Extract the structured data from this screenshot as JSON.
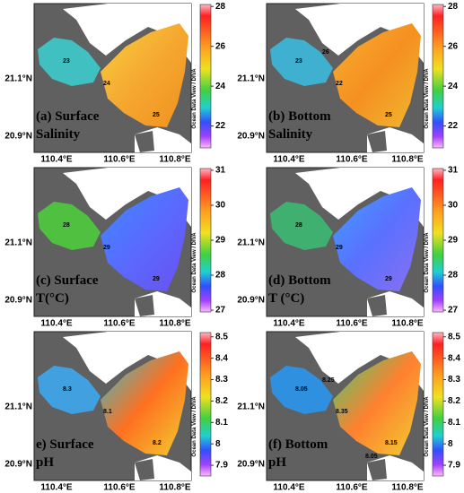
{
  "x_labels": [
    "110.4°E",
    "110.6°E",
    "110.8°E"
  ],
  "y_labels": [
    "21.1°N",
    "20.9°N"
  ],
  "credit": "Ocean Data View / DIVA",
  "panels": [
    {
      "label": "(a) Surface",
      "sublabel": "Salinity",
      "colorbar": {
        "lim": [
          20.9,
          28.1
        ],
        "ticks": [
          28,
          26,
          24,
          22
        ]
      },
      "contours": [
        "23",
        "24",
        "25"
      ]
    },
    {
      "label": "(b) Bottom",
      "sublabel": "Salinity",
      "colorbar": {
        "lim": [
          20.9,
          28.1
        ],
        "ticks": [
          28,
          26,
          24,
          22
        ]
      },
      "contours": [
        "23",
        "22",
        "25",
        "26"
      ]
    },
    {
      "label": "(c) Surface",
      "sublabel": "T(°C)",
      "colorbar": {
        "lim": [
          26.95,
          31.05
        ],
        "ticks": [
          31,
          30,
          29,
          28,
          27
        ]
      },
      "contours": [
        "28",
        "29",
        "29"
      ]
    },
    {
      "label": "(d) Bottom",
      "sublabel": "T (°C)",
      "colorbar": {
        "lim": [
          26.95,
          31.05
        ],
        "ticks": [
          31,
          30,
          29,
          28,
          27
        ]
      },
      "contours": [
        "28",
        "29",
        "29"
      ]
    },
    {
      "label": "e) Surface",
      "sublabel": "pH",
      "colorbar": {
        "lim": [
          7.85,
          8.52
        ],
        "ticks": [
          8.5,
          8.4,
          8.3,
          8.2,
          8.1,
          8,
          7.9
        ]
      },
      "contours": [
        "8.3",
        "8.1",
        "8.2"
      ]
    },
    {
      "label": "(f) Bottom",
      "sublabel": "pH",
      "colorbar": {
        "lim": [
          7.85,
          8.52
        ],
        "ticks": [
          8.5,
          8.4,
          8.3,
          8.2,
          8.1,
          8,
          7.9
        ]
      },
      "contours": [
        "8.05",
        "8.35",
        "8.15",
        "8.25",
        "8.05"
      ]
    }
  ]
}
